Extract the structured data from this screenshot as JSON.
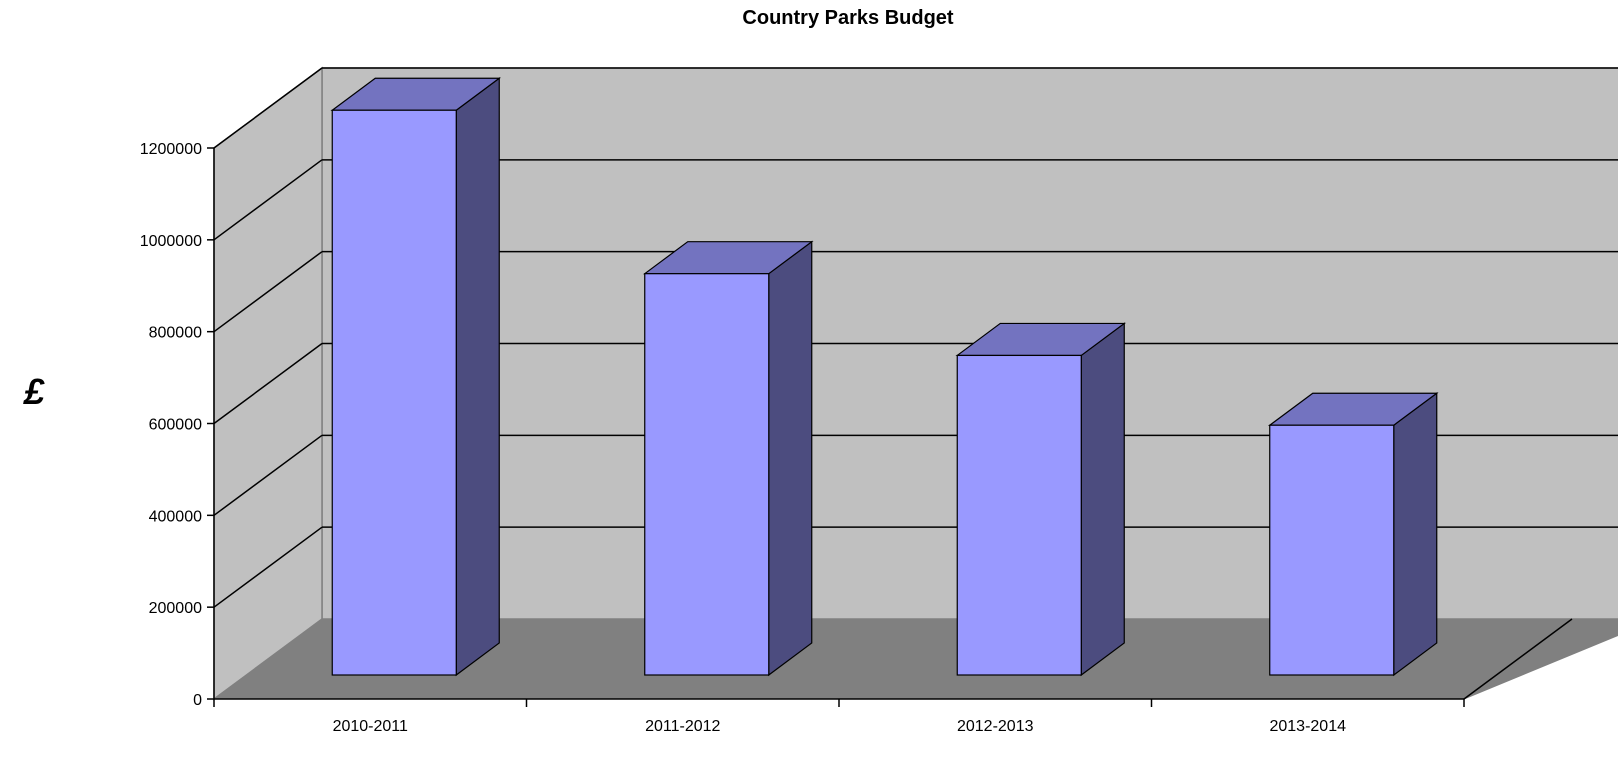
{
  "chart_data": {
    "type": "bar",
    "title": "Country Parks Budget",
    "xlabel": "",
    "ylabel": "£",
    "categories": [
      "2010-2011",
      "2011-2012",
      "2012-2013",
      "2013-2014"
    ],
    "values": [
      1230000,
      874000,
      696000,
      544000
    ],
    "ylim": [
      0,
      1200000
    ],
    "yticks": [
      "0",
      "200000",
      "400000",
      "600000",
      "800000",
      "1000000",
      "1200000"
    ],
    "grid": true,
    "style": "3d-column",
    "legend": "none",
    "colors": {
      "bar_front": "#9999ff",
      "bar_top": "#7373c0",
      "bar_side": "#4c4c7f",
      "back_wall": "#c0c0c0",
      "side_wall": "#c0c0c0",
      "floor": "#808080",
      "outline": "#000000"
    }
  }
}
